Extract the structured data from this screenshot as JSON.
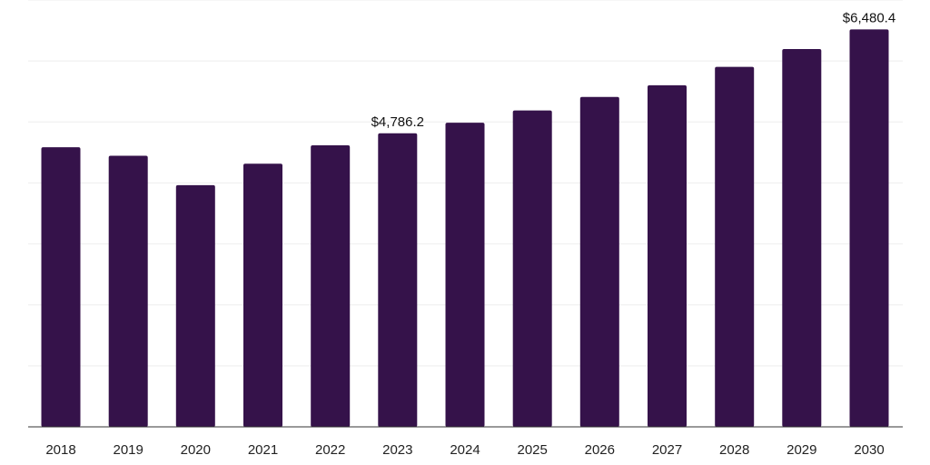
{
  "chart_data": {
    "type": "bar",
    "categories": [
      "2018",
      "2019",
      "2020",
      "2021",
      "2022",
      "2023",
      "2024",
      "2025",
      "2026",
      "2027",
      "2028",
      "2029",
      "2030"
    ],
    "values": [
      4560,
      4420,
      3940,
      4290,
      4590,
      4786.2,
      4960,
      5160,
      5380,
      5570,
      5870,
      6160,
      6480.4
    ],
    "data_labels": [
      {
        "category": "2023",
        "text": "$4,786.2"
      },
      {
        "category": "2030",
        "text": "$6,480.4"
      }
    ],
    "ylim": [
      0,
      6960
    ],
    "grid": true,
    "bar_color": "#35124a",
    "grid_color": "#eeeeee",
    "axis_color": "#333333"
  }
}
